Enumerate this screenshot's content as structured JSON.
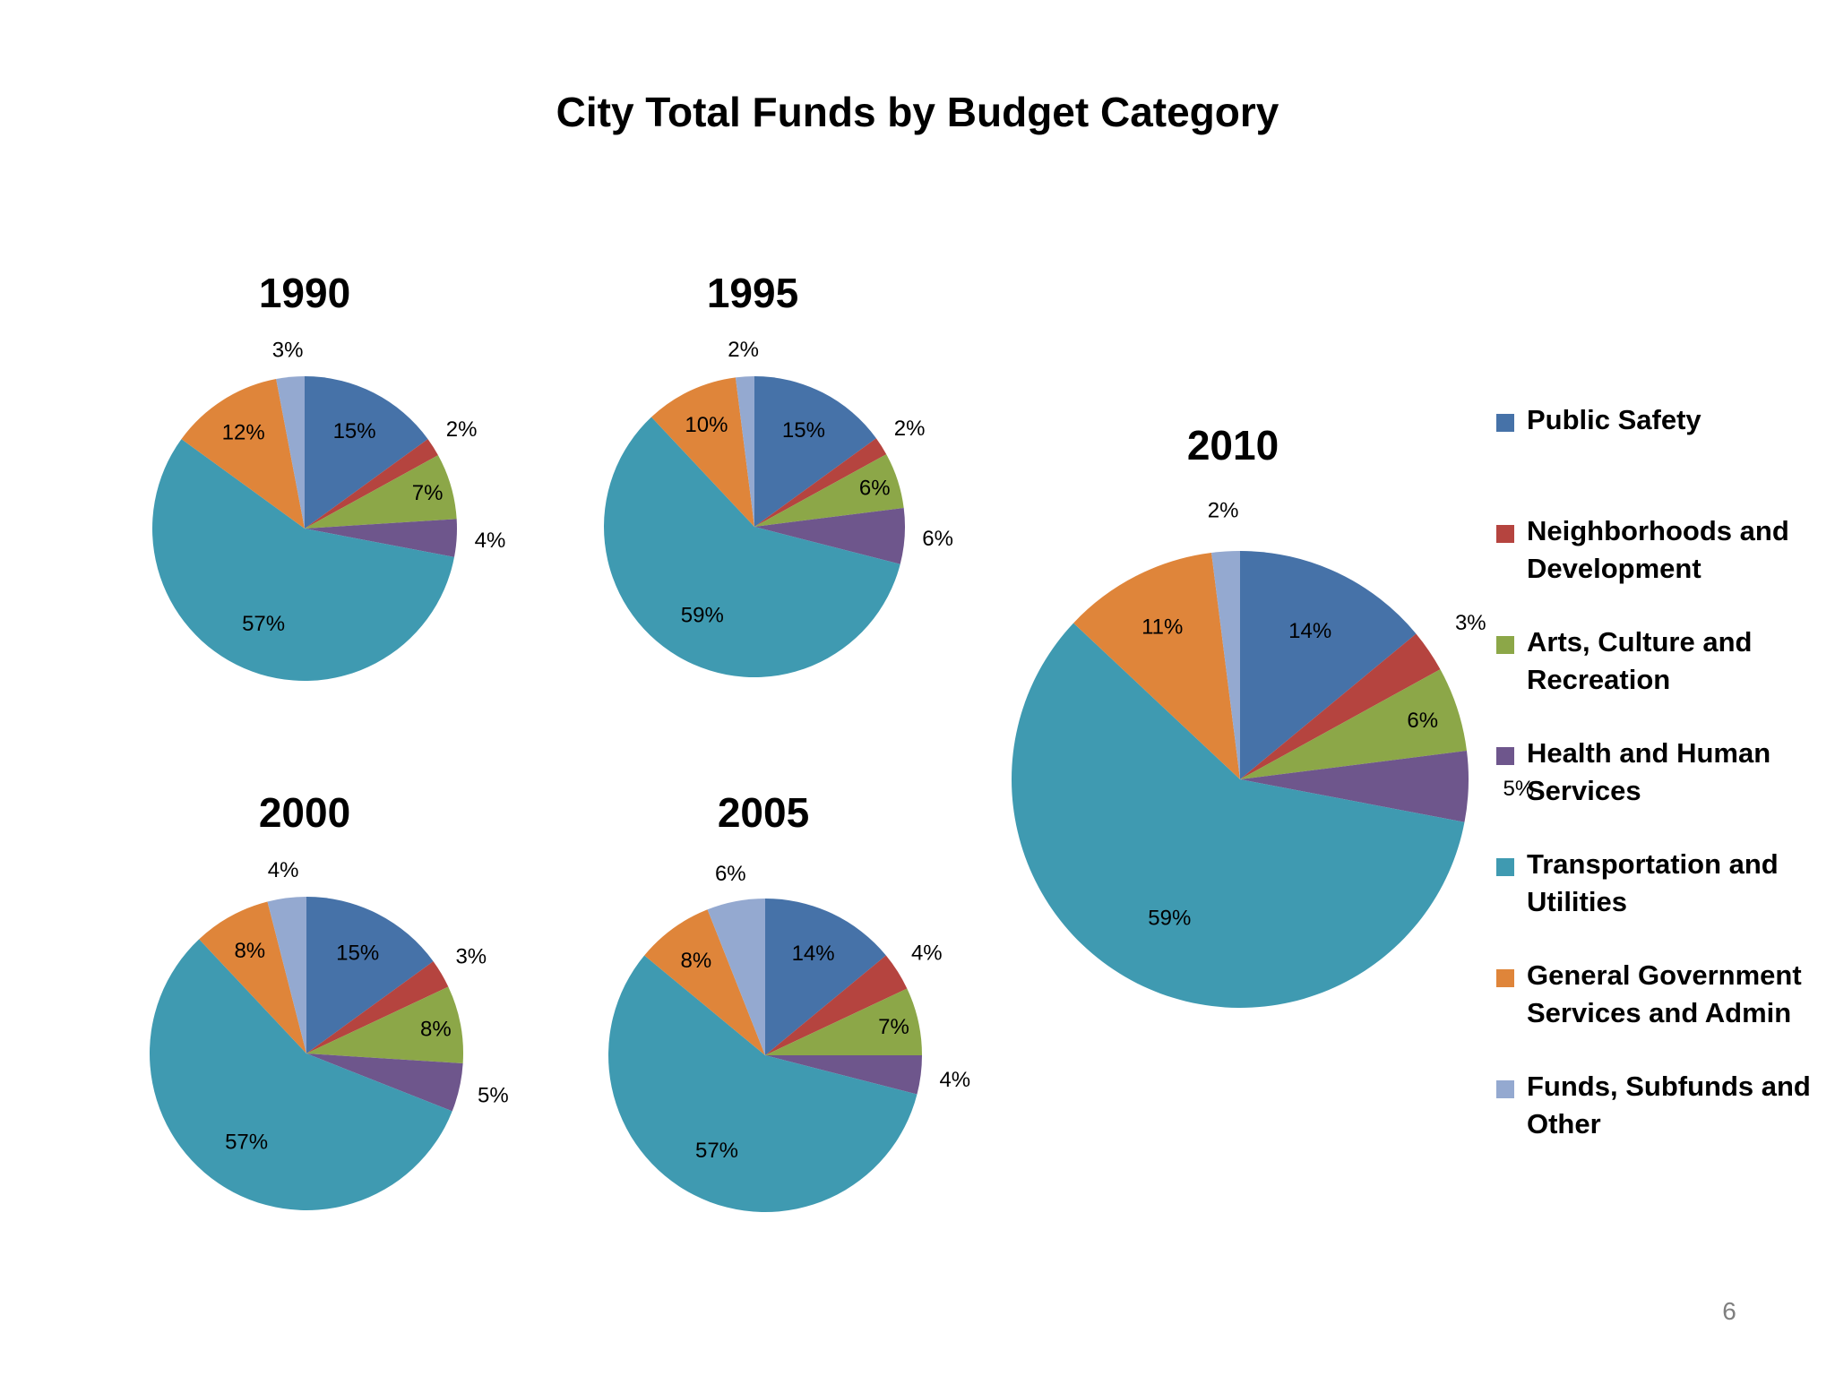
{
  "title": "City Total Funds by Budget Category",
  "page_number": "6",
  "colors": {
    "Public Safety": "#4672a8",
    "Neighborhoods and Development": "#b5443f",
    "Arts, Culture and Recreation": "#8ca748",
    "Health and Human Services": "#6e568c",
    "Transportation and Utilities": "#3f9ab1",
    "General Government Services and Admin": "#df853a",
    "Funds, Subfunds and Other": "#94a9d0"
  },
  "legend": [
    {
      "label": "Public Safety"
    },
    {
      "label": "Neighborhoods and Development"
    },
    {
      "label": "Arts, Culture and Recreation"
    },
    {
      "label": "Health and Human Services"
    },
    {
      "label": "Transportation and Utilities"
    },
    {
      "label": "General Government Services and Admin"
    },
    {
      "label": "Funds, Subfunds and Other"
    }
  ],
  "chart_data": [
    {
      "type": "pie",
      "title": "1990",
      "categories": [
        "Public Safety",
        "Neighborhoods and Development",
        "Arts, Culture and Recreation",
        "Health and Human Services",
        "Transportation and Utilities",
        "General Government Services and Admin",
        "Funds, Subfunds and Other"
      ],
      "values": [
        15,
        2,
        7,
        4,
        57,
        12,
        3
      ],
      "labels": [
        "15%",
        "2%",
        "7%",
        "4%",
        "57%",
        "12%",
        "3%"
      ]
    },
    {
      "type": "pie",
      "title": "1995",
      "categories": [
        "Public Safety",
        "Neighborhoods and Development",
        "Arts, Culture and Recreation",
        "Health and Human Services",
        "Transportation and Utilities",
        "General Government Services and Admin",
        "Funds, Subfunds and Other"
      ],
      "values": [
        15,
        2,
        6,
        6,
        59,
        10,
        2
      ],
      "labels": [
        "15%",
        "2%",
        "6%",
        "6%",
        "59%",
        "10%",
        "2%"
      ]
    },
    {
      "type": "pie",
      "title": "2000",
      "categories": [
        "Public Safety",
        "Neighborhoods and Development",
        "Arts, Culture and Recreation",
        "Health and Human Services",
        "Transportation and Utilities",
        "General Government Services and Admin",
        "Funds, Subfunds and Other"
      ],
      "values": [
        15,
        3,
        8,
        5,
        57,
        8,
        4
      ],
      "labels": [
        "15%",
        "3%",
        "8%",
        "5%",
        "57%",
        "8%",
        "4%"
      ]
    },
    {
      "type": "pie",
      "title": "2005",
      "categories": [
        "Public Safety",
        "Neighborhoods and Development",
        "Arts, Culture and Recreation",
        "Health and Human Services",
        "Transportation and Utilities",
        "General Government Services and Admin",
        "Funds, Subfunds and Other"
      ],
      "values": [
        14,
        4,
        7,
        4,
        57,
        8,
        6
      ],
      "labels": [
        "14%",
        "4%",
        "7%",
        "4%",
        "57%",
        "8%",
        "6%"
      ]
    },
    {
      "type": "pie",
      "title": "2010",
      "categories": [
        "Public Safety",
        "Neighborhoods and Development",
        "Arts, Culture and Recreation",
        "Health and Human Services",
        "Transportation and Utilities",
        "General Government Services and Admin",
        "Funds, Subfunds and Other"
      ],
      "values": [
        14,
        3,
        6,
        5,
        59,
        11,
        2
      ],
      "labels": [
        "14%",
        "3%",
        "6%",
        "5%",
        "59%",
        "11%",
        "2%"
      ]
    }
  ]
}
